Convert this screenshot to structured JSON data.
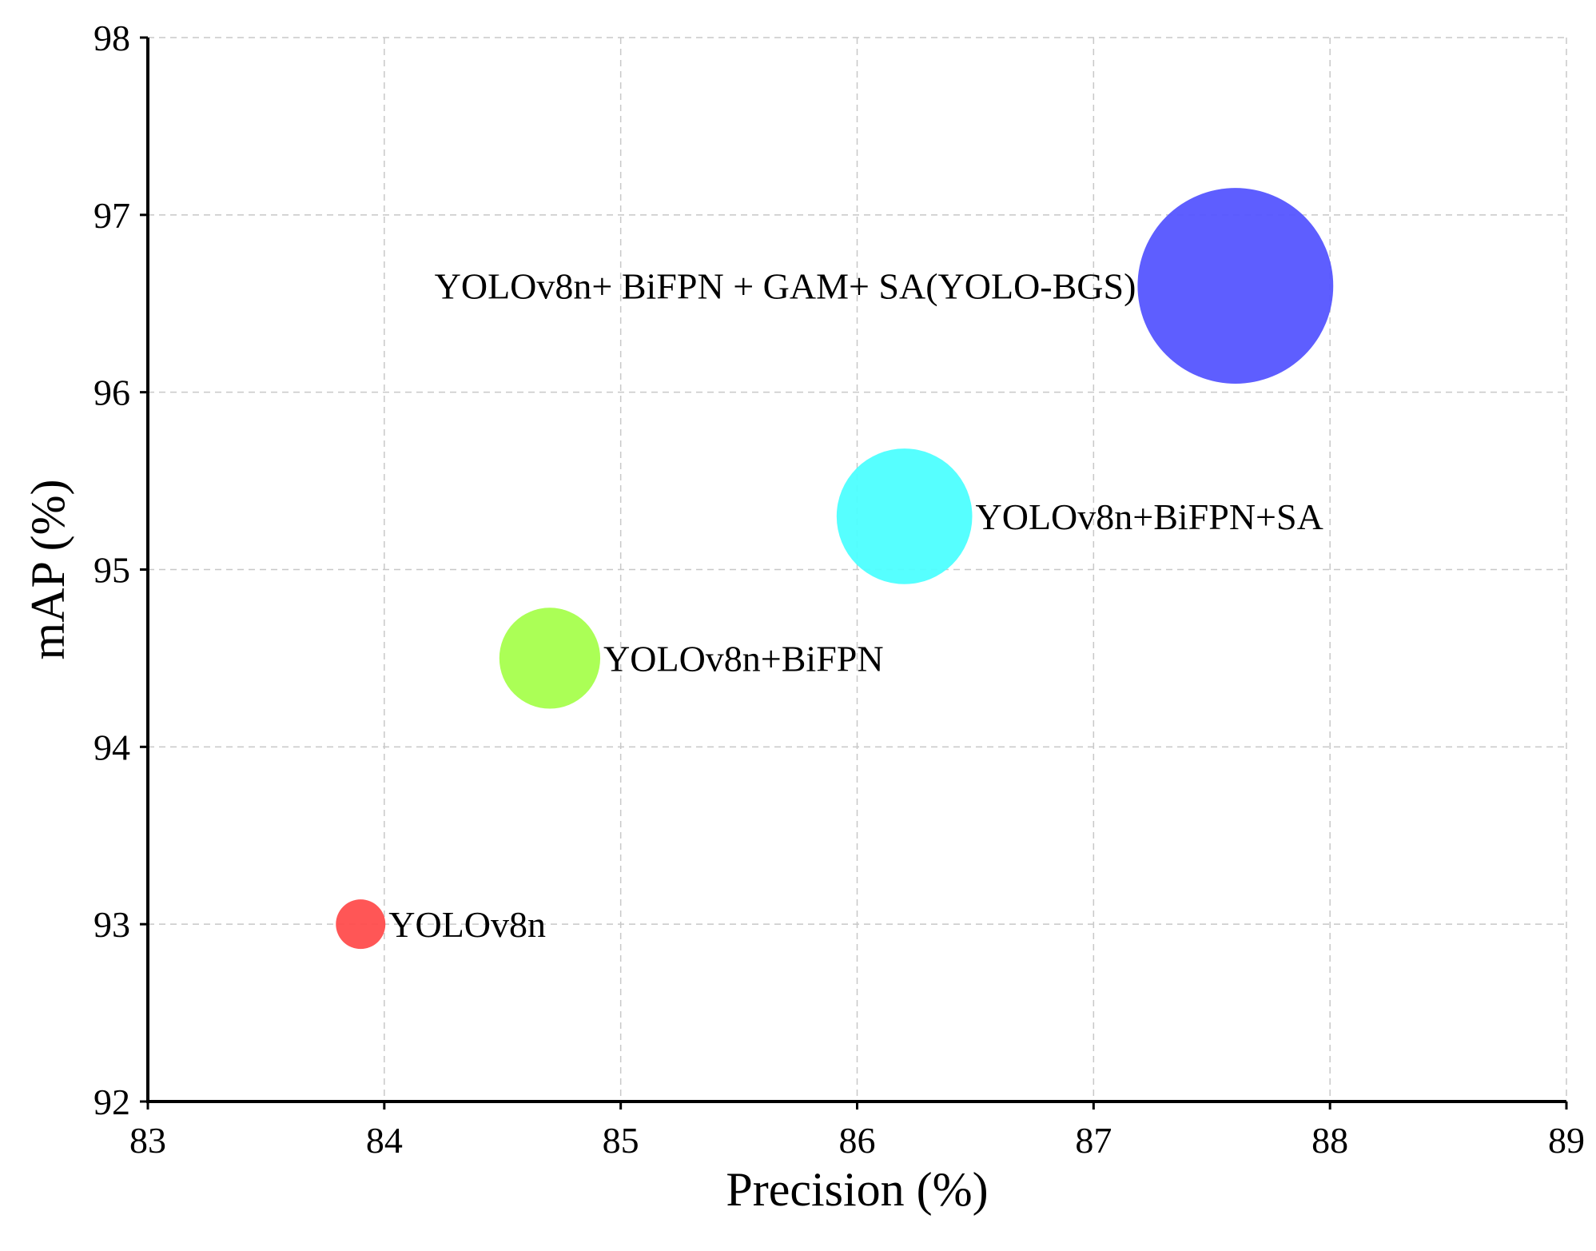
{
  "chart_data": {
    "type": "bubble",
    "title": "",
    "xlabel": "Precision (%)",
    "ylabel": "mAP (%)",
    "xlim": [
      83,
      89
    ],
    "ylim": [
      92,
      98
    ],
    "xticks": [
      83,
      84,
      85,
      86,
      87,
      88,
      89
    ],
    "yticks": [
      92,
      93,
      94,
      95,
      96,
      97,
      98
    ],
    "grid": true,
    "series": [
      {
        "name": "YOLOv8n",
        "x": 83.9,
        "y": 93.0,
        "size": 1.0,
        "color": "#ff4d4d",
        "label_side": "right"
      },
      {
        "name": "YOLOv8n+BiFPN",
        "x": 84.7,
        "y": 94.5,
        "size": 2.0,
        "color": "#a6ff4d",
        "label_side": "right"
      },
      {
        "name": "YOLOv8n+BiFPN+SA",
        "x": 86.2,
        "y": 95.3,
        "size": 3.0,
        "color": "#4dffff",
        "label_side": "right"
      },
      {
        "name": "YOLOv8n+ BiFPN + GAM+ SA(YOLO-BGS)",
        "x": 87.6,
        "y": 96.6,
        "size": 4.1,
        "color": "#5555ff",
        "label_side": "left"
      }
    ]
  }
}
